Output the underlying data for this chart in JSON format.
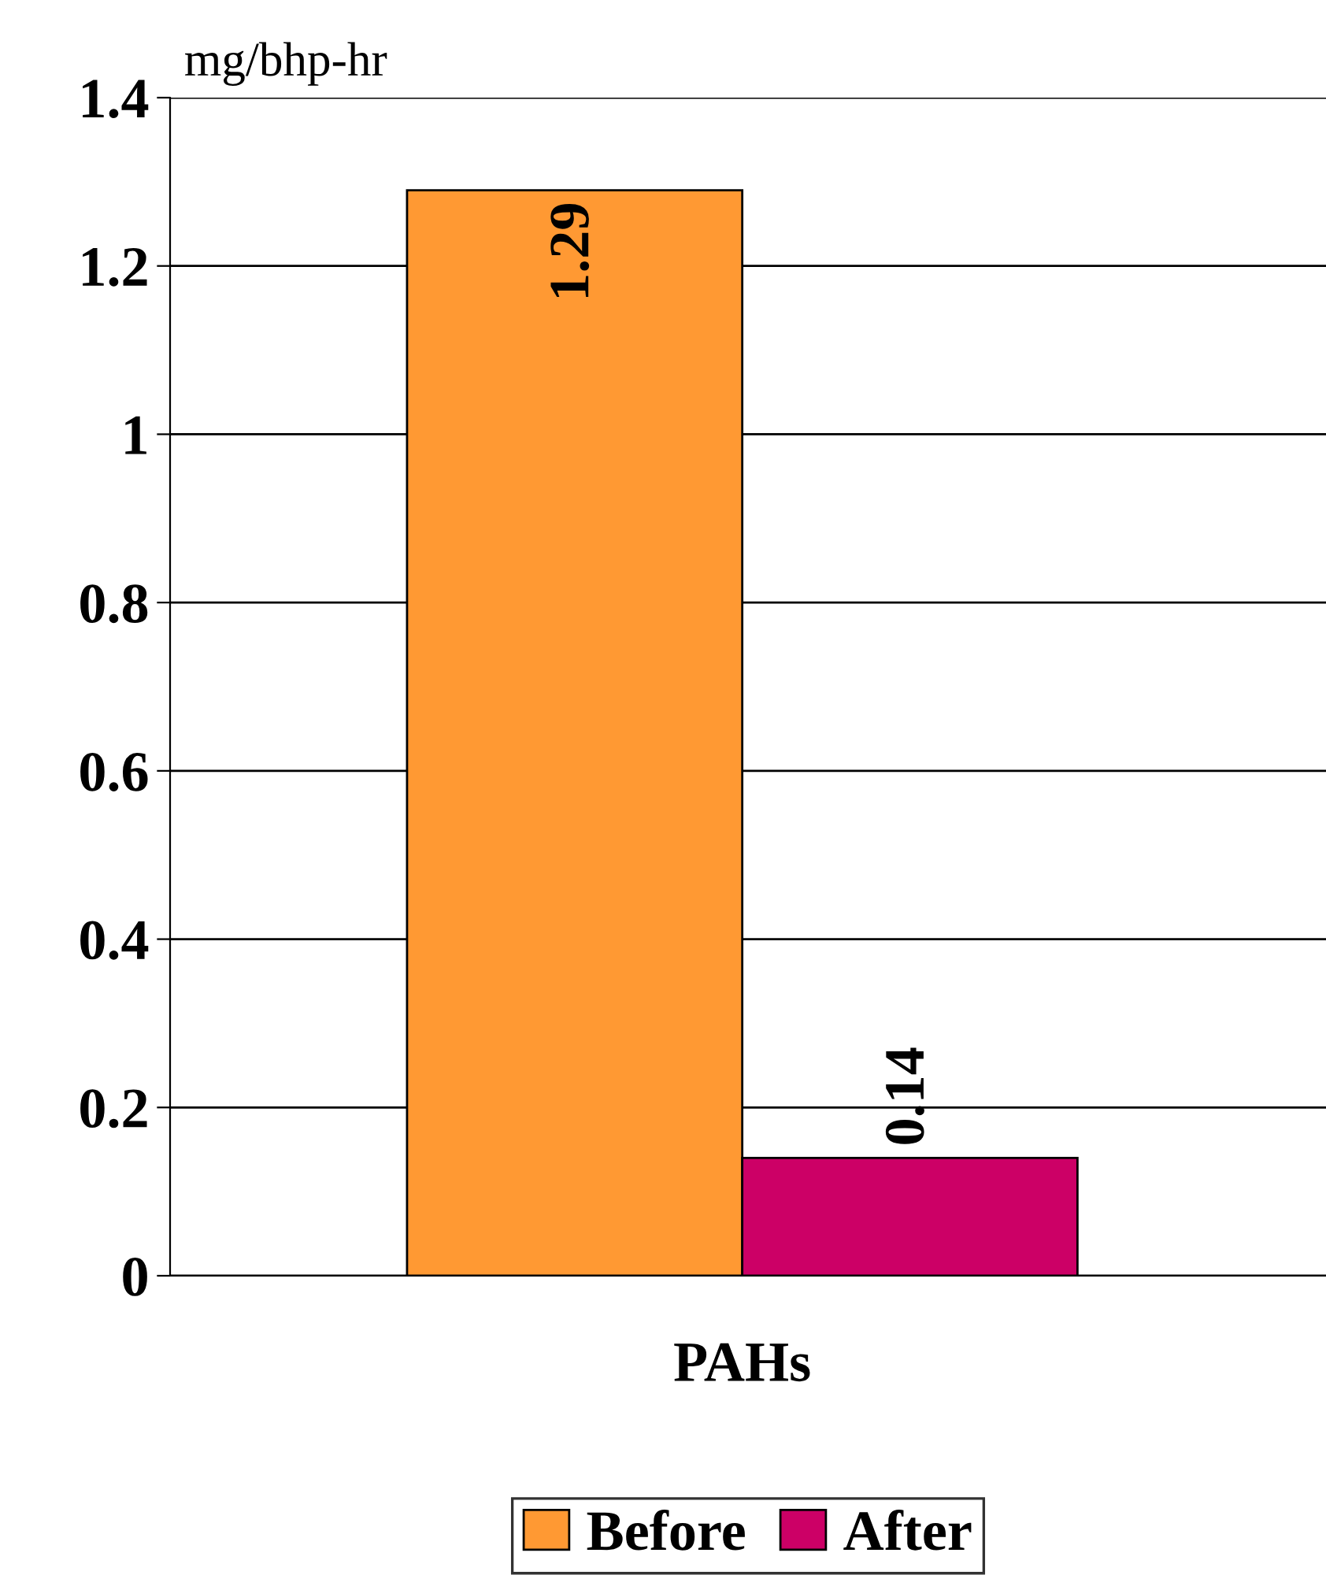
{
  "chart_data": {
    "type": "bar",
    "ylabel": "mg/bhp-hr",
    "categories": [
      "PAHs"
    ],
    "series": [
      {
        "name": "Before",
        "color": "#ff9933",
        "values": [
          1.29
        ]
      },
      {
        "name": "After",
        "color": "#cc0066",
        "values": [
          0.14
        ]
      }
    ],
    "ylim": [
      0,
      1.4
    ],
    "yticks": [
      0,
      0.2,
      0.4,
      0.6,
      0.8,
      1,
      1.2,
      1.4
    ],
    "grid": "y",
    "legend": "bottom",
    "data_labels": true
  }
}
